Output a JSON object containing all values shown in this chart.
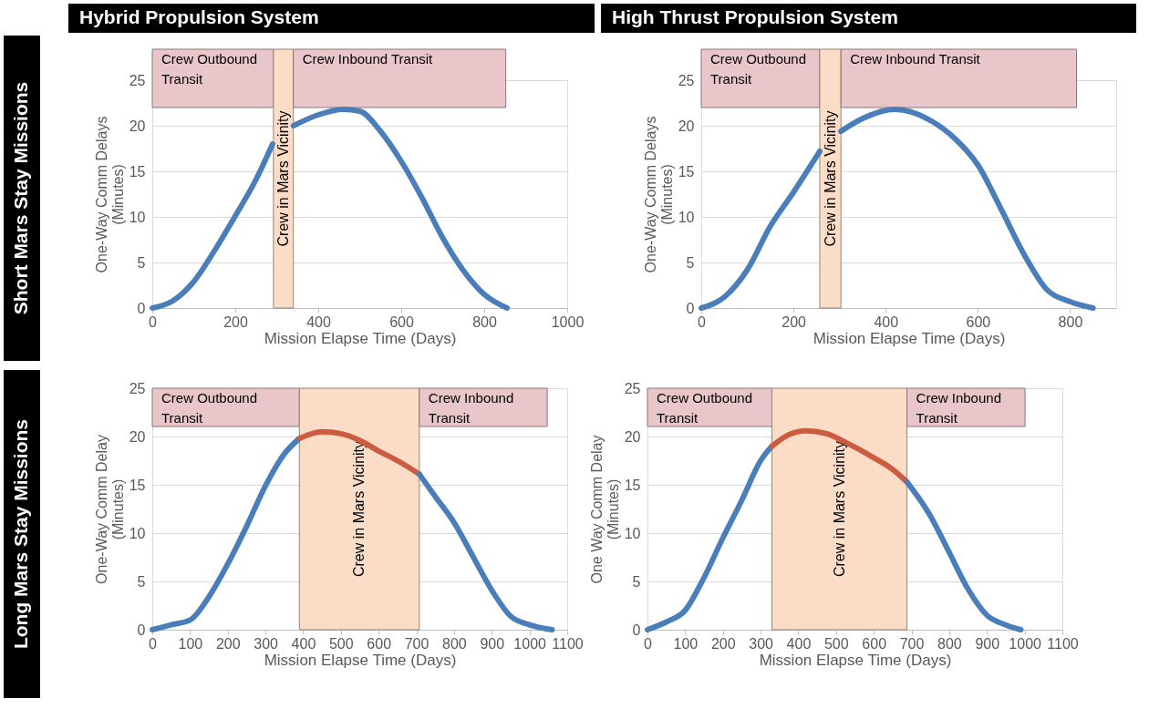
{
  "chart_data": [
    {
      "type": "line",
      "title": "Hybrid Propulsion System",
      "subtitle": "Short Mars Stay Missions",
      "xlabel": "Mission Elapse Time (Days)",
      "ylabel": "One-Way Comm Delays (Minutes)",
      "xlim": [
        0,
        1000
      ],
      "xticks": [
        0,
        200,
        400,
        600,
        800,
        1000
      ],
      "ylim": [
        0,
        25
      ],
      "yticks": [
        0,
        5,
        10,
        15,
        20,
        25
      ],
      "grid": "y",
      "marker": "none",
      "line_style": "solid",
      "bands": [
        {
          "axis": "x",
          "from": 0,
          "to": 292,
          "label": "Crew Outbound Transit",
          "color": "#e8c6ca"
        },
        {
          "axis": "x",
          "from": 292,
          "to": 340,
          "label": "Crew in Mars Vicinity",
          "color": "#fbdcc6"
        },
        {
          "axis": "x",
          "from": 340,
          "to": 852,
          "label": "Crew Inbound Transit",
          "color": "#e8c6ca"
        }
      ],
      "series": [
        {
          "color": "#4a7ebb",
          "x": [
            0,
            50,
            100,
            150,
            200,
            250,
            290
          ],
          "values": [
            0,
            0.8,
            2.9,
            6.3,
            10.1,
            14.1,
            18
          ]
        },
        {
          "color": "#4a7ebb",
          "x": [
            340,
            400,
            460,
            500,
            550,
            600,
            650,
            700,
            750,
            800,
            855
          ],
          "values": [
            20,
            21.2,
            21.8,
            21.6,
            19.4,
            16.1,
            12.1,
            7.7,
            4.1,
            1.5,
            0
          ]
        }
      ]
    },
    {
      "type": "line",
      "title": "High Thrust Propulsion System",
      "xlabel": "Mission Elapse Time (Days)",
      "ylabel": "One-Way Comm Delays (Minutes)",
      "xlim": [
        0,
        900
      ],
      "xticks": [
        0,
        200,
        400,
        600,
        800
      ],
      "ylim": [
        0,
        25
      ],
      "yticks": [
        0,
        5,
        10,
        15,
        20,
        25
      ],
      "grid": "y",
      "marker": "none",
      "line_style": "solid",
      "bands": [
        {
          "axis": "x",
          "from": 0,
          "to": 257,
          "label": "Crew Outbound Transit",
          "color": "#e8c6ca"
        },
        {
          "axis": "x",
          "from": 257,
          "to": 303,
          "label": "Crew in Mars Vicinity",
          "color": "#fbdcc6"
        },
        {
          "axis": "x",
          "from": 303,
          "to": 814,
          "label": "Crew Inbound Transit",
          "color": "#e8c6ca"
        }
      ],
      "series": [
        {
          "color": "#4a7ebb",
          "x": [
            0,
            50,
            100,
            150,
            200,
            257
          ],
          "values": [
            0,
            1.2,
            4.2,
            9,
            12.7,
            17.2
          ]
        },
        {
          "color": "#4a7ebb",
          "x": [
            303,
            350,
            420,
            500,
            550,
            600,
            650,
            700,
            750,
            800,
            850
          ],
          "values": [
            19.4,
            20.8,
            21.8,
            20.5,
            18.6,
            15.7,
            10.9,
            5.9,
            2,
            0.7,
            0
          ]
        }
      ]
    },
    {
      "type": "line",
      "subtitle": "Long Mars Stay Missions",
      "xlabel": "Mission Elapse Time (Days)",
      "ylabel": "One-Way Comm Delay (Minutes)",
      "xlim": [
        0,
        1100
      ],
      "xticks": [
        0,
        100,
        200,
        300,
        400,
        500,
        600,
        700,
        800,
        900,
        1000,
        1100
      ],
      "ylim": [
        0,
        25
      ],
      "yticks": [
        0,
        5,
        10,
        15,
        20,
        25
      ],
      "grid": "y",
      "marker": "none",
      "line_style": "solid",
      "bands": [
        {
          "axis": "x",
          "from": 0,
          "to": 390,
          "label": "Crew Outbound Transit",
          "color": "#e8c6ca"
        },
        {
          "axis": "x",
          "from": 390,
          "to": 708,
          "label": "Crew in Mars Vicinity",
          "color": "#fbdcc6"
        },
        {
          "axis": "x",
          "from": 708,
          "to": 1047,
          "label": "Crew Inbound Transit",
          "color": "#e8c6ca"
        }
      ],
      "series": [
        {
          "color": "#4a7ebb",
          "x": [
            0,
            50,
            100,
            150,
            200,
            250,
            300,
            350,
            390
          ],
          "values": [
            0,
            0.5,
            1,
            3.4,
            6.8,
            10.7,
            14.9,
            18.2,
            19.8
          ]
        },
        {
          "color": "#cc5c3f",
          "x": [
            390,
            450,
            500,
            550,
            600,
            650,
            708
          ],
          "values": [
            19.8,
            20.5,
            20.3,
            19.6,
            18.5,
            17.5,
            16.1
          ]
        },
        {
          "color": "#4a7ebb",
          "x": [
            708,
            750,
            800,
            850,
            900,
            950,
            1000,
            1060
          ],
          "values": [
            16.1,
            13.8,
            11.1,
            7.6,
            4.1,
            1.4,
            0.5,
            0
          ]
        }
      ]
    },
    {
      "type": "line",
      "xlabel": "Mission Elapse Time (Days)",
      "ylabel": "One Way Comm Delay (Minutes)",
      "xlim": [
        0,
        1100
      ],
      "xticks": [
        0,
        100,
        200,
        300,
        400,
        500,
        600,
        700,
        800,
        900,
        1000,
        1100
      ],
      "ylim": [
        0,
        25
      ],
      "yticks": [
        0,
        5,
        10,
        15,
        20,
        25
      ],
      "grid": "y",
      "marker": "none",
      "line_style": "solid",
      "bands": [
        {
          "axis": "x",
          "from": 0,
          "to": 330,
          "label": "Crew Outbound Transit",
          "color": "#e8c6ca"
        },
        {
          "axis": "x",
          "from": 330,
          "to": 688,
          "label": "Crew in Mars Vicinity",
          "color": "#fbdcc6"
        },
        {
          "axis": "x",
          "from": 688,
          "to": 1001,
          "label": "Crew Inbound Transit",
          "color": "#e8c6ca"
        }
      ],
      "series": [
        {
          "color": "#4a7ebb",
          "x": [
            0,
            50,
            100,
            150,
            200,
            250,
            300,
            330
          ],
          "values": [
            0,
            0.8,
            2,
            5.4,
            9.5,
            13.4,
            17.5,
            19
          ]
        },
        {
          "color": "#cc5c3f",
          "x": [
            330,
            375,
            420,
            475,
            530,
            600,
            650,
            688
          ],
          "values": [
            19,
            20.2,
            20.6,
            20.3,
            19.3,
            17.8,
            16.6,
            15.3
          ]
        },
        {
          "color": "#4a7ebb",
          "x": [
            688,
            750,
            800,
            850,
            900,
            950,
            990
          ],
          "values": [
            15.3,
            11.8,
            8,
            4.2,
            1.5,
            0.5,
            0
          ]
        }
      ]
    }
  ]
}
